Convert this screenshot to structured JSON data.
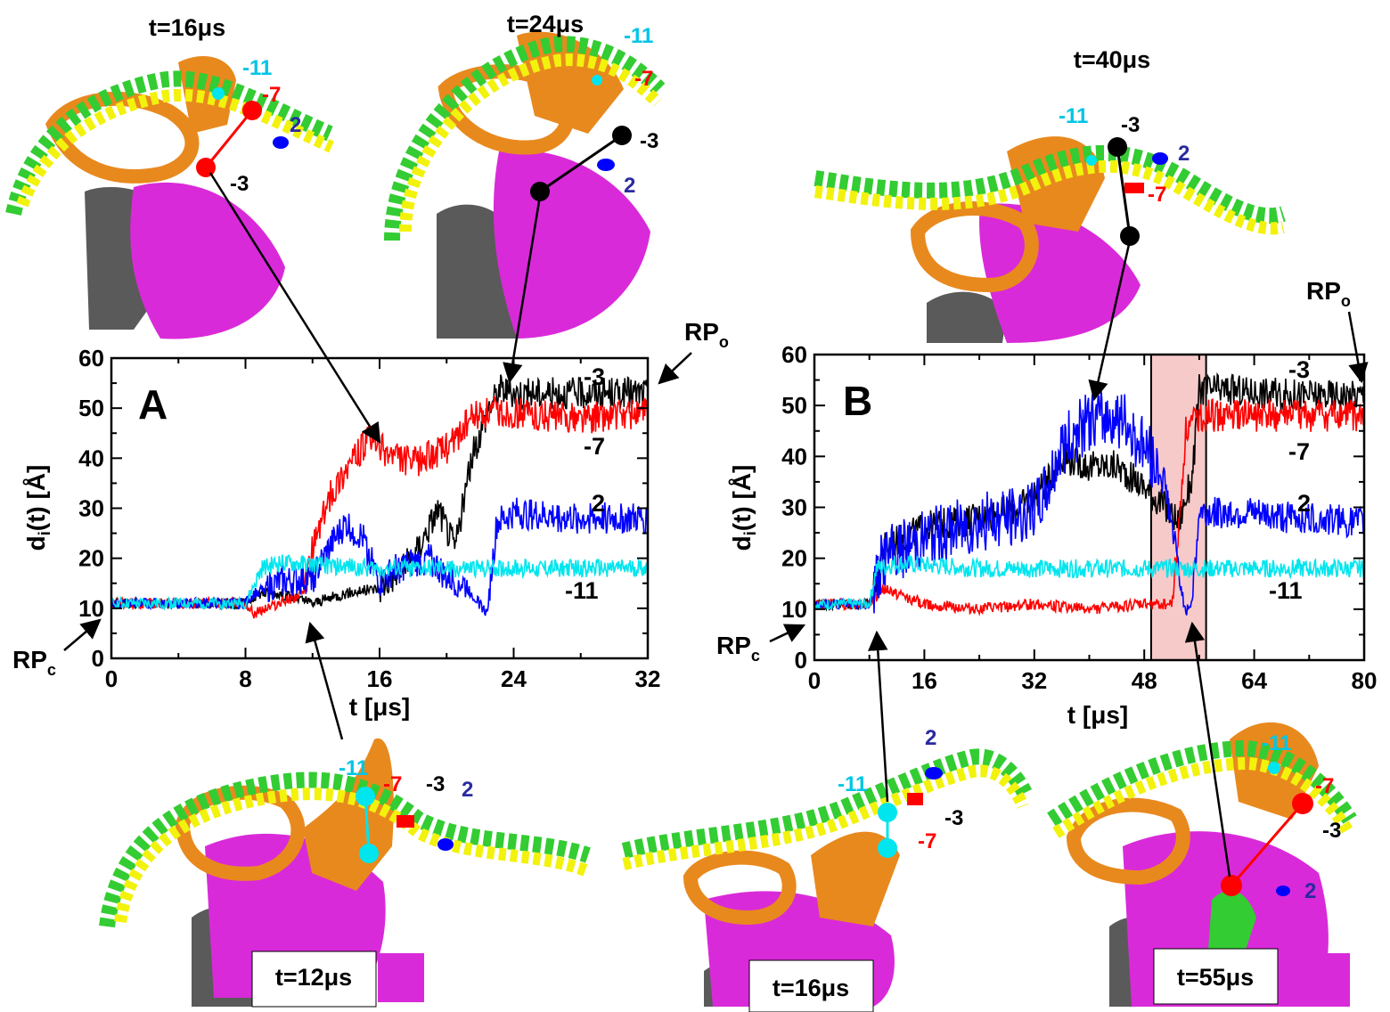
{
  "colors": {
    "black_series": "#000000",
    "red_series": "#ff0000",
    "blue_series": "#0000ff",
    "cyan_series": "#00e5ee",
    "dna_green": "#33cc33",
    "dna_yellow": "#f2f20d",
    "protein_orange": "#e8891e",
    "protein_magenta": "#d92ad9",
    "protein_gray": "#5a5a5a",
    "highlight": "#f7caca"
  },
  "snapshots": {
    "top_a1": "t=16μs",
    "top_a2": "t=24μs",
    "top_b": "t=40μs",
    "bot_a": "t=12μs",
    "bot_b1": "t=16μs",
    "bot_b2": "t=55μs"
  },
  "site_labels": {
    "m11": "-11",
    "m7": "-7",
    "m3": "-3",
    "p2": "2"
  },
  "state_labels": {
    "rpo_base": "RP",
    "rpo_sub": "o",
    "rpc_base": "RP",
    "rpc_sub": "c"
  },
  "chart_data": [
    {
      "panel": "A",
      "type": "line",
      "xlabel": "t [μs]",
      "ylabel": "d_i(t) [Å]",
      "xlim": [
        0,
        32
      ],
      "ylim": [
        0,
        60
      ],
      "xticks": [
        "0",
        "8",
        "16",
        "24",
        "32"
      ],
      "yticks": [
        "0",
        "10",
        "20",
        "30",
        "40",
        "50",
        "60"
      ],
      "series": [
        {
          "name": "-3",
          "color": "#000000",
          "x": [
            0,
            8,
            8.8,
            10,
            12,
            14,
            16,
            18,
            19.5,
            20.5,
            21.5,
            22.5,
            23.2,
            24,
            28,
            32
          ],
          "y": [
            11,
            11,
            13,
            13,
            11,
            13,
            14,
            20,
            30,
            22,
            40,
            50,
            54,
            53,
            53,
            53
          ]
        },
        {
          "name": "-7",
          "color": "#ff0000",
          "x": [
            0,
            8,
            8.5,
            11.5,
            12,
            13,
            14,
            15.5,
            16.5,
            18,
            20,
            21.5,
            22.5,
            24,
            28,
            32
          ],
          "y": [
            11,
            11,
            9,
            13,
            22,
            32,
            38,
            44,
            41,
            39,
            42,
            48,
            49,
            49,
            48,
            49
          ]
        },
        {
          "name": "2",
          "color": "#0000ff",
          "x": [
            0,
            8,
            8.5,
            10,
            12,
            13,
            14,
            15,
            16,
            17,
            18,
            19,
            20,
            21,
            22.4,
            23,
            24,
            28,
            32
          ],
          "y": [
            11,
            11,
            13,
            15,
            16,
            22,
            27,
            24,
            15,
            18,
            19,
            20,
            16,
            15,
            9,
            27,
            29,
            28,
            28
          ]
        },
        {
          "name": "-11",
          "color": "#00e5ee",
          "x": [
            0,
            8,
            9,
            10,
            16,
            24,
            32
          ],
          "y": [
            11,
            11,
            18,
            19,
            18,
            18,
            18
          ]
        }
      ],
      "series_labels": [
        "-3",
        "-7",
        "2",
        "-11"
      ]
    },
    {
      "panel": "B",
      "type": "line",
      "xlabel": "t [μs]",
      "ylabel": "d_i(t) [Å]",
      "xlim": [
        0,
        80
      ],
      "ylim": [
        0,
        60
      ],
      "xticks": [
        "0",
        "16",
        "32",
        "48",
        "64",
        "80"
      ],
      "yticks": [
        "0",
        "10",
        "20",
        "30",
        "40",
        "50",
        "60"
      ],
      "highlight_x": [
        49,
        57
      ],
      "series": [
        {
          "name": "-3",
          "color": "#000000",
          "x": [
            0,
            8,
            10,
            16,
            24,
            30,
            34,
            36,
            40,
            44,
            48,
            51,
            53,
            55,
            56,
            60,
            70,
            80
          ],
          "y": [
            11,
            11,
            22,
            26,
            28,
            30,
            35,
            40,
            38,
            38,
            34,
            30,
            27,
            36,
            53,
            53,
            52,
            52
          ]
        },
        {
          "name": "-7",
          "color": "#ff0000",
          "x": [
            0,
            8,
            10,
            16,
            24,
            32,
            40,
            48,
            52,
            53,
            54,
            56,
            60,
            70,
            80
          ],
          "y": [
            11,
            11,
            14,
            11,
            10,
            11,
            10,
            11,
            11,
            25,
            45,
            48,
            48,
            48,
            48
          ]
        },
        {
          "name": "2",
          "color": "#0000ff",
          "x": [
            0,
            8,
            10,
            16,
            24,
            32,
            34,
            36,
            40,
            44,
            48,
            51,
            53,
            54,
            55,
            56,
            60,
            70,
            80
          ],
          "y": [
            11,
            11,
            20,
            24,
            27,
            29,
            34,
            42,
            47,
            48,
            42,
            35,
            18,
            9,
            12,
            29,
            29,
            28,
            27
          ]
        },
        {
          "name": "-11",
          "color": "#00e5ee",
          "x": [
            0,
            8,
            9,
            12,
            24,
            48,
            64,
            80
          ],
          "y": [
            11,
            11,
            18,
            19,
            18,
            18,
            18,
            18
          ]
        }
      ],
      "series_labels": [
        "-3",
        "-7",
        "2",
        "-11"
      ]
    }
  ]
}
